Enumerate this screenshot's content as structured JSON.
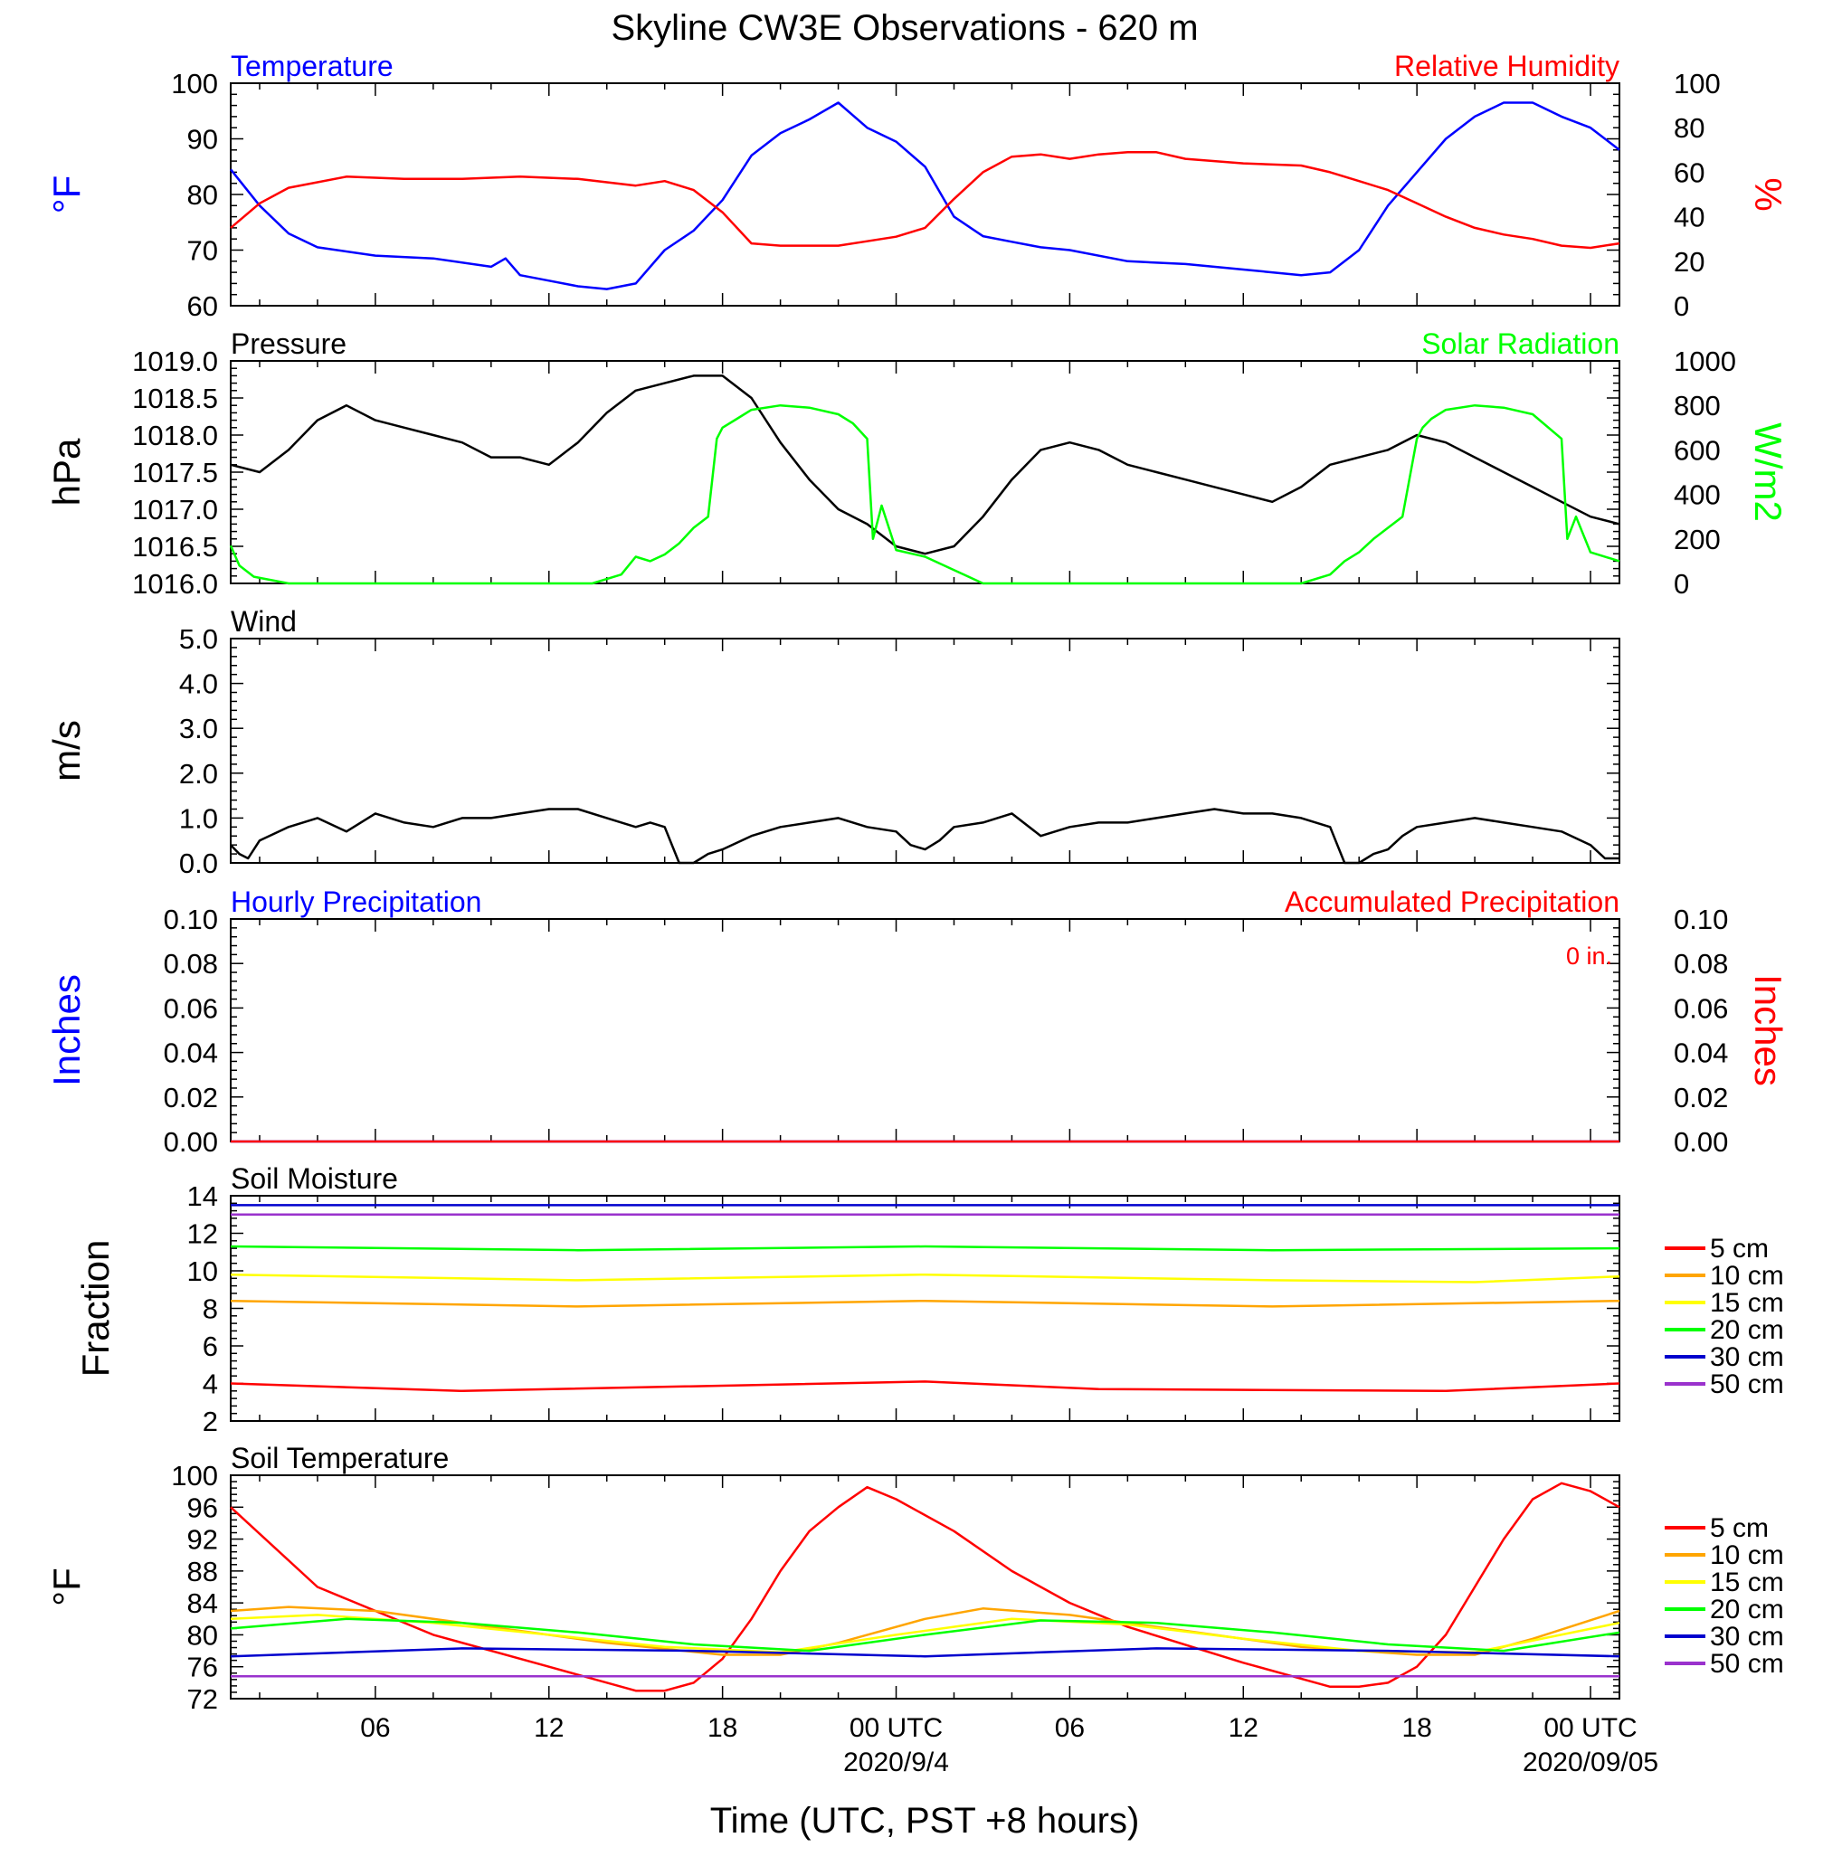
{
  "title": "Skyline CW3E Observations - 620 m",
  "xaxis": {
    "label": "Time (UTC, PST +8 hours)",
    "ticks": [
      "06",
      "12",
      "18",
      "00 UTC",
      "06",
      "12",
      "18",
      "00 UTC"
    ],
    "dates": [
      "2020/9/4",
      "2020/09/05"
    ]
  },
  "colors": {
    "blue": "#0000ff",
    "red": "#ff0000",
    "green": "#00ff00",
    "black": "#000000",
    "orange": "#ffa500",
    "yellow": "#ffff00",
    "purple": "#9a32cd",
    "darkblue": "#0000cd"
  },
  "chart_data": [
    {
      "type": "line",
      "title": "Temperature / Relative Humidity",
      "left_label": "Temperature",
      "right_label": "Relative Humidity",
      "ylabel": "°F",
      "y2label": "%",
      "ylim": [
        60,
        100
      ],
      "y2lim": [
        0,
        100
      ],
      "yticks": [
        "100",
        "90",
        "80",
        "70",
        "60"
      ],
      "y2ticks": [
        "100",
        "80",
        "60",
        "40",
        "20",
        "0"
      ],
      "xlim_hours": [
        1,
        49
      ],
      "series": [
        {
          "name": "Temperature",
          "axis": "left",
          "color": "#0000ff",
          "x": [
            1,
            2,
            3,
            4,
            6,
            8,
            10,
            10.5,
            11,
            12,
            13,
            14,
            15,
            16,
            17,
            18,
            19,
            20,
            21,
            22,
            23,
            24,
            25,
            26,
            27,
            28,
            29,
            30,
            32,
            34,
            36,
            38,
            39,
            40,
            41,
            42,
            43,
            44,
            45,
            46,
            47,
            48,
            49
          ],
          "y": [
            84.5,
            78,
            73,
            70.5,
            69,
            68.5,
            67,
            68.5,
            65.5,
            64.5,
            63.5,
            63,
            64,
            70,
            73.5,
            79,
            87,
            91,
            93.5,
            96.5,
            92,
            89.5,
            85,
            76,
            72.5,
            71.5,
            70.5,
            70,
            68,
            67.5,
            66.5,
            65.5,
            66,
            70,
            78,
            84,
            90,
            94,
            96.5,
            96.5,
            94,
            92,
            88
          ]
        },
        {
          "name": "Relative Humidity",
          "axis": "right",
          "color": "#ff0000",
          "x": [
            1,
            2,
            3,
            5,
            7,
            9,
            11,
            13,
            15,
            16,
            17,
            18,
            19,
            20,
            21,
            22,
            23,
            24,
            25,
            26,
            27,
            28,
            29,
            30,
            31,
            32,
            33,
            34,
            36,
            38,
            39,
            40,
            41,
            42,
            43,
            44,
            45,
            46,
            47,
            48,
            49
          ],
          "y": [
            35,
            46,
            53,
            58,
            57,
            57,
            58,
            57,
            54,
            56,
            52,
            42,
            28,
            27,
            27,
            27,
            29,
            31,
            35,
            48,
            60,
            67,
            68,
            66,
            68,
            69,
            69,
            66,
            64,
            63,
            60,
            56,
            52,
            46,
            40,
            35,
            32,
            30,
            27,
            26,
            28
          ]
        }
      ]
    },
    {
      "type": "line",
      "title": "Pressure / Solar Radiation",
      "left_label": "Pressure",
      "right_label": "Solar Radiation",
      "ylabel": "hPa",
      "y2label": "W/m2",
      "ylim": [
        1016.0,
        1019.0
      ],
      "y2lim": [
        0,
        1000
      ],
      "yticks": [
        "1019.0",
        "1018.5",
        "1018.0",
        "1017.5",
        "1017.0",
        "1016.5",
        "1016.0"
      ],
      "y2ticks": [
        "1000",
        "800",
        "600",
        "400",
        "200",
        "0"
      ],
      "series": [
        {
          "name": "Pressure",
          "axis": "left",
          "color": "#000000",
          "x": [
            1,
            2,
            3,
            4,
            5,
            6,
            7,
            8,
            9,
            10,
            11,
            12,
            13,
            14,
            15,
            16,
            17,
            18,
            19,
            20,
            21,
            22,
            23,
            24,
            25,
            26,
            27,
            28,
            29,
            30,
            31,
            32,
            33,
            34,
            35,
            36,
            37,
            38,
            39,
            40,
            41,
            42,
            43,
            44,
            45,
            46,
            47,
            48,
            49
          ],
          "y": [
            1017.6,
            1017.5,
            1017.8,
            1018.2,
            1018.4,
            1018.2,
            1018.1,
            1018.0,
            1017.9,
            1017.7,
            1017.7,
            1017.6,
            1017.9,
            1018.3,
            1018.6,
            1018.7,
            1018.8,
            1018.8,
            1018.5,
            1017.9,
            1017.4,
            1017.0,
            1016.8,
            1016.5,
            1016.4,
            1016.5,
            1016.9,
            1017.4,
            1017.8,
            1017.9,
            1017.8,
            1017.6,
            1017.5,
            1017.4,
            1017.3,
            1017.2,
            1017.1,
            1017.3,
            1017.6,
            1017.7,
            1017.8,
            1018.0,
            1017.9,
            1017.7,
            1017.5,
            1017.3,
            1017.1,
            1016.9,
            1016.8
          ]
        },
        {
          "name": "Solar Radiation",
          "axis": "right",
          "color": "#00ff00",
          "x": [
            1,
            1.3,
            1.8,
            3,
            6,
            9,
            12,
            13.5,
            14.5,
            15,
            15.5,
            16,
            16.5,
            17,
            17.5,
            17.8,
            18,
            18.5,
            19,
            20,
            21,
            22,
            22.5,
            23,
            23.2,
            23.5,
            24,
            25,
            26,
            27,
            30,
            33,
            36,
            38,
            39,
            39.5,
            40,
            40.5,
            41,
            41.5,
            42,
            42.2,
            42.5,
            43,
            44,
            45,
            46,
            47,
            47.2,
            47.5,
            48,
            49
          ],
          "y": [
            170,
            80,
            30,
            0,
            0,
            0,
            0,
            0,
            40,
            120,
            100,
            130,
            180,
            250,
            300,
            650,
            700,
            740,
            780,
            800,
            790,
            760,
            720,
            650,
            200,
            350,
            150,
            120,
            60,
            0,
            0,
            0,
            0,
            0,
            40,
            100,
            140,
            200,
            250,
            300,
            650,
            700,
            740,
            780,
            800,
            790,
            760,
            650,
            200,
            300,
            140,
            100
          ]
        }
      ]
    },
    {
      "type": "line",
      "title": "Wind",
      "left_label": "Wind",
      "ylabel": "m/s",
      "ylim": [
        0,
        5
      ],
      "yticks": [
        "5.0",
        "4.0",
        "3.0",
        "2.0",
        "1.0",
        "0.0"
      ],
      "series": [
        {
          "name": "Wind",
          "axis": "left",
          "color": "#000000",
          "x": [
            1,
            1.3,
            1.6,
            2,
            3,
            4,
            5,
            6,
            7,
            8,
            9,
            10,
            11,
            12,
            13,
            14,
            15,
            15.5,
            16,
            16.5,
            17,
            17.5,
            18,
            19,
            20,
            21,
            22,
            23,
            24,
            24.5,
            25,
            25.5,
            26,
            27,
            28,
            29,
            30,
            31,
            32,
            33,
            34,
            35,
            36,
            37,
            38,
            39,
            39.5,
            40,
            40.5,
            41,
            41.5,
            42,
            43,
            44,
            45,
            46,
            47,
            48,
            48.5,
            49
          ],
          "y": [
            0.4,
            0.2,
            0.1,
            0.5,
            0.8,
            1.0,
            0.7,
            1.1,
            0.9,
            0.8,
            1.0,
            1.0,
            1.1,
            1.2,
            1.2,
            1.0,
            0.8,
            0.9,
            0.8,
            0.0,
            0.0,
            0.2,
            0.3,
            0.6,
            0.8,
            0.9,
            1.0,
            0.8,
            0.7,
            0.4,
            0.3,
            0.5,
            0.8,
            0.9,
            1.1,
            0.6,
            0.8,
            0.9,
            0.9,
            1.0,
            1.1,
            1.2,
            1.1,
            1.1,
            1.0,
            0.8,
            0.0,
            0.0,
            0.2,
            0.3,
            0.6,
            0.8,
            0.9,
            1.0,
            0.9,
            0.8,
            0.7,
            0.4,
            0.1,
            0.1
          ]
        }
      ]
    },
    {
      "type": "line",
      "title": "Precipitation",
      "left_label": "Hourly Precipitation",
      "right_label": "Accumulated Precipitation",
      "annotation": "0 in.",
      "ylabel": "Inches",
      "y2label": "Inches",
      "ylim": [
        0,
        0.1
      ],
      "y2lim": [
        0,
        0.1
      ],
      "yticks": [
        "0.10",
        "0.08",
        "0.06",
        "0.04",
        "0.02",
        "0.00"
      ],
      "y2ticks": [
        "0.10",
        "0.08",
        "0.06",
        "0.04",
        "0.02",
        "0.00"
      ],
      "series": [
        {
          "name": "Hourly Precipitation",
          "axis": "left",
          "color": "#0000ff",
          "x": [
            1,
            49
          ],
          "y": [
            0,
            0
          ]
        },
        {
          "name": "Accumulated Precipitation",
          "axis": "right",
          "color": "#ff0000",
          "x": [
            1,
            49
          ],
          "y": [
            0,
            0
          ]
        }
      ]
    },
    {
      "type": "line",
      "title": "Soil Moisture",
      "left_label": "Soil Moisture",
      "ylabel": "Fraction",
      "ylim": [
        2,
        14
      ],
      "yticks": [
        "14",
        "12",
        "10",
        "8",
        "6",
        "4",
        "2"
      ],
      "series": [
        {
          "name": "5 cm",
          "color": "#ff0000",
          "x": [
            1,
            9,
            25,
            31,
            43,
            49
          ],
          "y": [
            4.0,
            3.6,
            4.1,
            3.7,
            3.6,
            4.0
          ]
        },
        {
          "name": "10 cm",
          "color": "#ffa500",
          "x": [
            1,
            13,
            25,
            37,
            49
          ],
          "y": [
            8.4,
            8.1,
            8.4,
            8.1,
            8.4
          ]
        },
        {
          "name": "15 cm",
          "color": "#ffff00",
          "x": [
            1,
            13,
            25,
            37,
            44,
            49
          ],
          "y": [
            9.8,
            9.5,
            9.8,
            9.5,
            9.4,
            9.7
          ]
        },
        {
          "name": "20 cm",
          "color": "#00ff00",
          "x": [
            1,
            13,
            25,
            37,
            49
          ],
          "y": [
            11.3,
            11.1,
            11.3,
            11.1,
            11.2
          ]
        },
        {
          "name": "30 cm",
          "color": "#0000cd",
          "x": [
            1,
            49
          ],
          "y": [
            13.5,
            13.5
          ]
        },
        {
          "name": "50 cm",
          "color": "#9a32cd",
          "x": [
            1,
            49
          ],
          "y": [
            13.0,
            13.0
          ]
        }
      ]
    },
    {
      "type": "line",
      "title": "Soil Temperature",
      "left_label": "Soil Temperature",
      "ylabel": "°F",
      "ylim": [
        72,
        100
      ],
      "yticks": [
        "100",
        "96",
        "92",
        "88",
        "84",
        "80",
        "76",
        "72"
      ],
      "series": [
        {
          "name": "5 cm",
          "color": "#ff0000",
          "x": [
            1,
            4,
            8,
            12,
            15,
            16,
            17,
            18,
            19,
            20,
            21,
            22,
            23,
            24,
            26,
            28,
            30,
            32,
            36,
            38,
            39,
            40,
            41,
            42,
            43,
            44,
            45,
            46,
            47,
            48,
            49
          ],
          "y": [
            96,
            86,
            80,
            76,
            73,
            73,
            74,
            77,
            82,
            88,
            93,
            96,
            98.5,
            97,
            93,
            88,
            84,
            81,
            76.5,
            74.5,
            73.5,
            73.5,
            74,
            76,
            80,
            86,
            92,
            97,
            99,
            98,
            96
          ]
        },
        {
          "name": "10 cm",
          "color": "#ffa500",
          "x": [
            1,
            3,
            6,
            10,
            14,
            18,
            20,
            22,
            25,
            27,
            30,
            34,
            38,
            42,
            44,
            46,
            49
          ],
          "y": [
            83,
            83.5,
            83,
            81,
            79,
            77.5,
            77.5,
            79,
            82,
            83.3,
            82.5,
            80.5,
            78.5,
            77.5,
            77.5,
            79.5,
            83
          ]
        },
        {
          "name": "15 cm",
          "color": "#ffff00",
          "x": [
            1,
            4,
            8,
            12,
            16,
            20,
            24,
            28,
            32,
            36,
            40,
            44,
            49
          ],
          "y": [
            82,
            82.5,
            81.5,
            80,
            78.5,
            77.8,
            80,
            82,
            81.3,
            79.5,
            78,
            77.8,
            81.5
          ]
        },
        {
          "name": "20 cm",
          "color": "#00ff00",
          "x": [
            1,
            5,
            9,
            13,
            17,
            21,
            25,
            29,
            33,
            37,
            41,
            45,
            49
          ],
          "y": [
            80.8,
            82,
            81.5,
            80.3,
            78.8,
            78,
            80,
            81.8,
            81.5,
            80.3,
            78.8,
            78,
            80.3
          ]
        },
        {
          "name": "30 cm",
          "color": "#0000cd",
          "x": [
            1,
            9,
            17,
            25,
            33,
            41,
            49
          ],
          "y": [
            77.3,
            78.3,
            78,
            77.3,
            78.3,
            78,
            77.3
          ]
        },
        {
          "name": "50 cm",
          "color": "#9a32cd",
          "x": [
            1,
            49
          ],
          "y": [
            74.8,
            74.8
          ]
        }
      ]
    }
  ]
}
